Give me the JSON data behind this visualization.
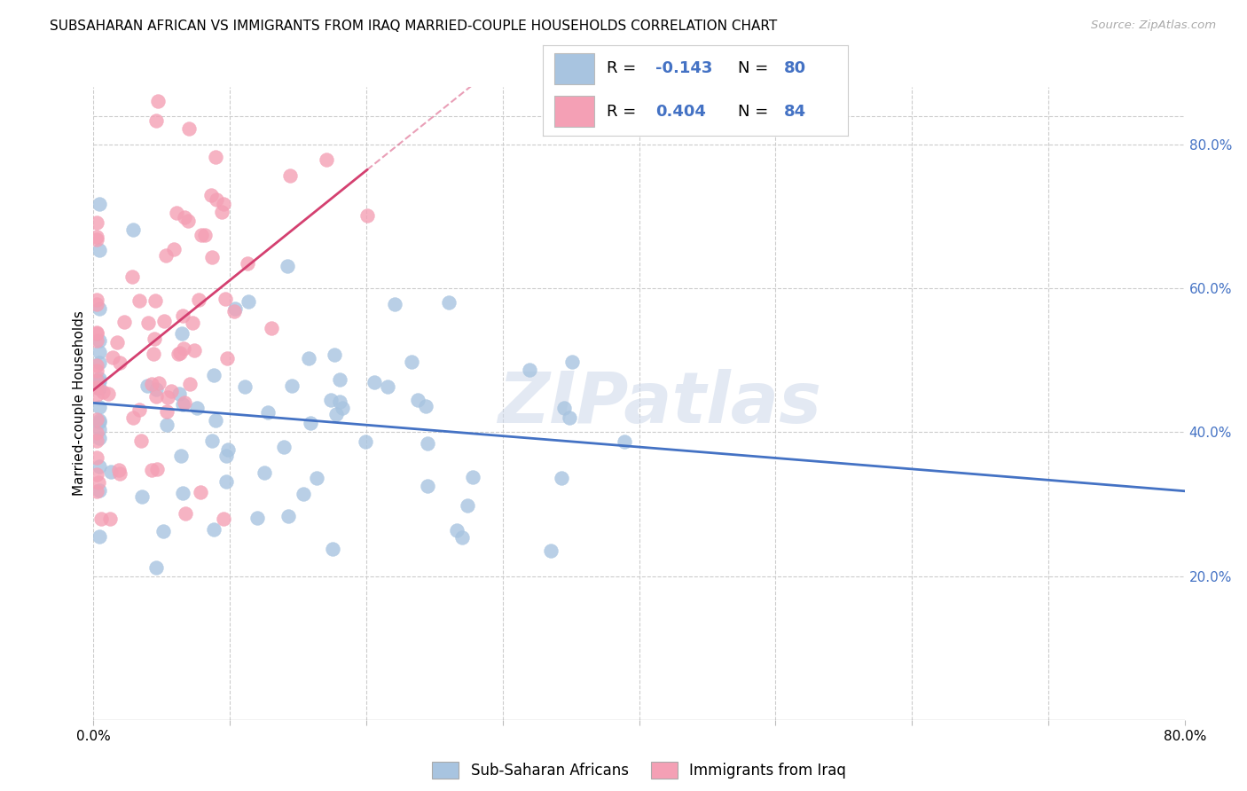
{
  "title": "SUBSAHARAN AFRICAN VS IMMIGRANTS FROM IRAQ MARRIED-COUPLE HOUSEHOLDS CORRELATION CHART",
  "source": "Source: ZipAtlas.com",
  "ylabel": "Married-couple Households",
  "R_blue": -0.143,
  "N_blue": 80,
  "R_pink": 0.404,
  "N_pink": 84,
  "blue_color": "#a8c4e0",
  "pink_color": "#f4a0b5",
  "blue_line_color": "#4472c4",
  "pink_line_color": "#d44070",
  "watermark": "ZIPatlas",
  "legend_label_blue": "Sub-Saharan Africans",
  "legend_label_pink": "Immigrants from Iraq",
  "legend_value_color": "#4472c4",
  "right_axis_color": "#4472c4",
  "grid_color": "#cccccc",
  "source_color": "#aaaaaa",
  "blue_seed": 42,
  "pink_seed": 17
}
